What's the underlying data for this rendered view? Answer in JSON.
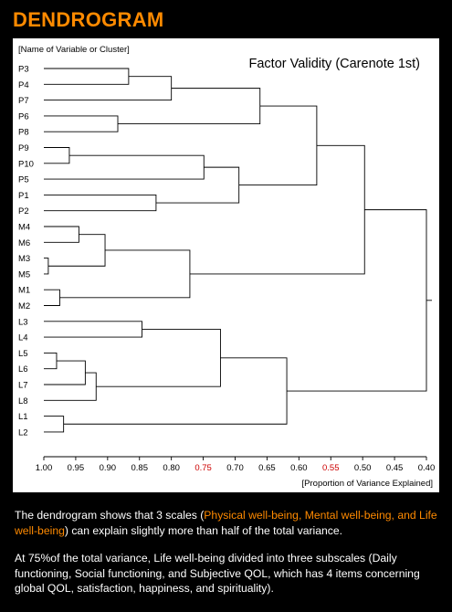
{
  "heading": "DENDROGRAM",
  "chart_data": {
    "type": "dendrogram",
    "title": "Factor Validity (Carenote 1st)",
    "ylabel": "[Name of Variable or Cluster]",
    "xlabel": "[Proportion of Variance Explained]",
    "xlim": [
      1.0,
      0.4
    ],
    "x_ticks": [
      "1.00",
      "0.95",
      "0.90",
      "0.85",
      "0.80",
      "0.75",
      "0.70",
      "0.65",
      "0.60",
      "0.55",
      "0.50",
      "0.45",
      "0.40"
    ],
    "highlighted_ticks": [
      "0.75",
      "0.55"
    ],
    "highlight_color": "#cc0000",
    "leaves": [
      "P3",
      "P4",
      "P7",
      "P6",
      "P8",
      "P9",
      "P10",
      "P5",
      "P1",
      "P2",
      "M4",
      "M6",
      "M3",
      "M5",
      "M1",
      "M2",
      "L3",
      "L4",
      "L5",
      "L6",
      "L7",
      "L8",
      "L1",
      "L2"
    ],
    "merges": [
      {
        "id": "A",
        "left": "P3",
        "right": "P4",
        "height": 0.867
      },
      {
        "id": "B",
        "left": "A",
        "right": "P7",
        "height": 0.8
      },
      {
        "id": "C",
        "left": "P6",
        "right": "P8",
        "height": 0.884
      },
      {
        "id": "D",
        "left": "B",
        "right": "C",
        "height": 0.661
      },
      {
        "id": "E",
        "left": "P9",
        "right": "P10",
        "height": 0.96
      },
      {
        "id": "F",
        "left": "E",
        "right": "P5",
        "height": 0.749
      },
      {
        "id": "G",
        "left": "P1",
        "right": "P2",
        "height": 0.824
      },
      {
        "id": "H",
        "left": "F",
        "right": "G",
        "height": 0.694
      },
      {
        "id": "I",
        "left": "D",
        "right": "H",
        "height": 0.572
      },
      {
        "id": "J",
        "left": "M4",
        "right": "M6",
        "height": 0.945
      },
      {
        "id": "K",
        "left": "M3",
        "right": "M5",
        "height": 0.993
      },
      {
        "id": "L",
        "left": "J",
        "right": "K",
        "height": 0.904
      },
      {
        "id": "M",
        "left": "M1",
        "right": "M2",
        "height": 0.975
      },
      {
        "id": "N",
        "left": "L",
        "right": "M",
        "height": 0.771
      },
      {
        "id": "O",
        "left": "I",
        "right": "N",
        "height": 0.497
      },
      {
        "id": "P",
        "left": "L3",
        "right": "L4",
        "height": 0.846
      },
      {
        "id": "Q",
        "left": "L5",
        "right": "L6",
        "height": 0.98
      },
      {
        "id": "R",
        "left": "Q",
        "right": "L7",
        "height": 0.935
      },
      {
        "id": "S",
        "left": "R",
        "right": "L8",
        "height": 0.918
      },
      {
        "id": "T",
        "left": "P",
        "right": "S",
        "height": 0.723
      },
      {
        "id": "U",
        "left": "L1",
        "right": "L2",
        "height": 0.969
      },
      {
        "id": "V",
        "left": "T",
        "right": "U",
        "height": 0.619
      },
      {
        "id": "W",
        "left": "O",
        "right": "V",
        "height": 0.4
      }
    ],
    "grid": false,
    "line_color": "#000000"
  },
  "caption": {
    "p1_before": "The dendrogram shows that 3 scales (",
    "p1_highlight": "Physical well-being, Mental well-being, and Life well-being",
    "p1_after": ") can explain slightly more than half of the total variance.",
    "p2": "At 75%of the total variance, Life well-being divided into three subscales (Daily functioning, Social functioning, and Subjective QOL, which has 4 items concerning global QOL, satisfaction, happiness, and spirituality)."
  }
}
